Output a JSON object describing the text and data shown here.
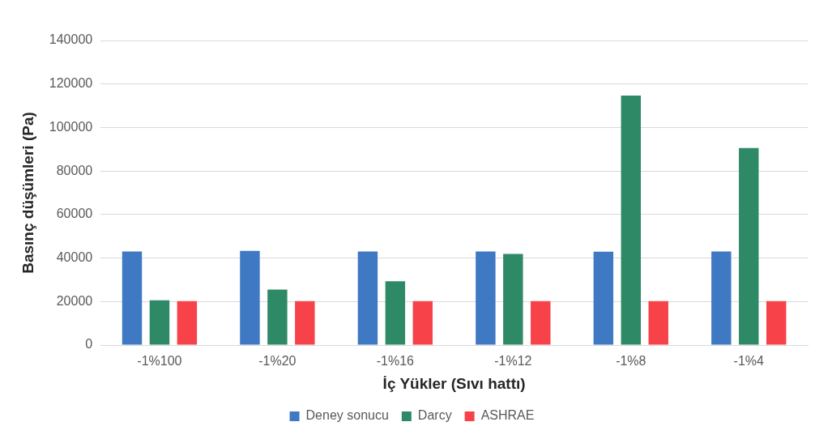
{
  "chart_data": {
    "type": "bar",
    "xlabel": "İç Yükler (Sıvı hattı)",
    "ylabel": "Basınç düşümleri (Pa)",
    "categories": [
      "-1%100",
      "-1%20",
      "-1%16",
      "-1%12",
      "-1%8",
      "-1%4"
    ],
    "series": [
      {
        "name": "Deney sonucu",
        "color": "#3f78c3",
        "values": [
          43000,
          43300,
          43000,
          43000,
          42900,
          43000
        ]
      },
      {
        "name": "Darcy",
        "color": "#2e8a66",
        "values": [
          20600,
          25500,
          29300,
          41900,
          114700,
          90600
        ]
      },
      {
        "name": "ASHRAE",
        "color": "#f7424a",
        "values": [
          20200,
          20200,
          20200,
          20200,
          20200,
          20200
        ]
      }
    ],
    "ylim": [
      0,
      140000
    ],
    "yticks": [
      0,
      20000,
      40000,
      60000,
      80000,
      100000,
      120000,
      140000
    ],
    "grid": "y",
    "legend": "bottom"
  }
}
